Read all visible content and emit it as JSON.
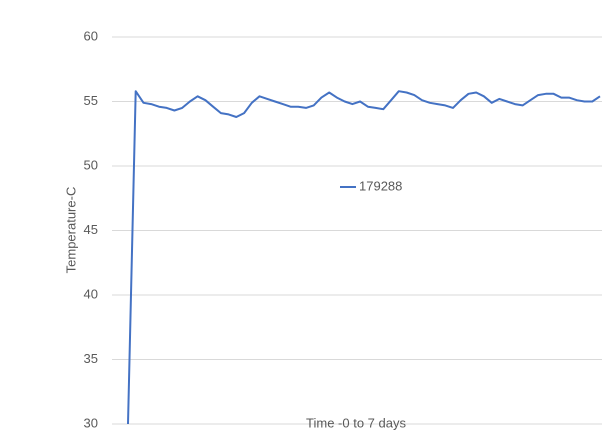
{
  "chart_data": {
    "type": "line",
    "y_label": "Temperature-C",
    "x_label": "Time -0 to 7 days",
    "ylim": [
      30,
      60
    ],
    "yticks": [
      30,
      35,
      40,
      45,
      50,
      55,
      60
    ],
    "grid": true,
    "legend": "center",
    "series": [
      {
        "name": "179288",
        "color": "#4472c4",
        "values": [
          30,
          55.8,
          54.9,
          54.8,
          54.6,
          54.5,
          54.3,
          54.5,
          55.0,
          55.4,
          55.1,
          54.6,
          54.1,
          54.0,
          53.8,
          54.1,
          54.9,
          55.4,
          55.2,
          55.0,
          54.8,
          54.6,
          54.6,
          54.5,
          54.7,
          55.3,
          55.7,
          55.3,
          55.0,
          54.8,
          55.0,
          54.6,
          54.5,
          54.4,
          55.1,
          55.8,
          55.7,
          55.5,
          55.1,
          54.9,
          54.8,
          54.7,
          54.5,
          55.1,
          55.6,
          55.7,
          55.4,
          54.9,
          55.2,
          55.0,
          54.8,
          54.7,
          55.1,
          55.5,
          55.6,
          55.6,
          55.3,
          55.3,
          55.1,
          55.0,
          55.0,
          55.4
        ]
      }
    ]
  }
}
